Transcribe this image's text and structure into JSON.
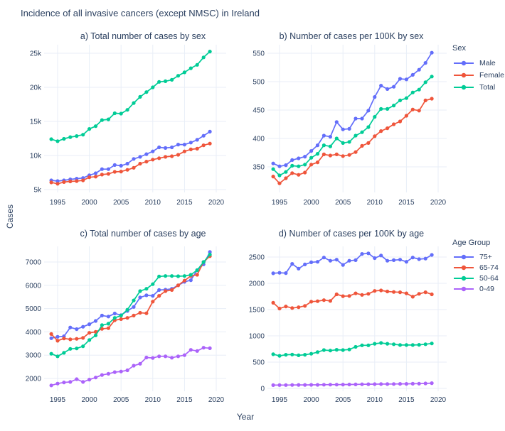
{
  "title": "Incidence of all invasive cancers (except NMSC) in Ireland",
  "ylabel": "Cases",
  "xlabel": "Year",
  "colors": {
    "male": "#636EFA",
    "female": "#EF553B",
    "total": "#00CC96",
    "age_75_plus": "#636EFA",
    "age_65_74": "#EF553B",
    "age_50_64": "#00CC96",
    "age_0_49": "#AB63FA",
    "text": "#2A3F5F",
    "grid": "#E8EEF7",
    "background": "#FFFFFF"
  },
  "legends": [
    {
      "title": "Sex",
      "items": [
        {
          "label": "Male",
          "color": "#636EFA"
        },
        {
          "label": "Female",
          "color": "#EF553B"
        },
        {
          "label": "Total",
          "color": "#00CC96"
        }
      ]
    },
    {
      "title": "Age Group",
      "items": [
        {
          "label": "75+",
          "color": "#636EFA"
        },
        {
          "label": "65-74",
          "color": "#EF553B"
        },
        {
          "label": "50-64",
          "color": "#00CC96"
        },
        {
          "label": "0-49",
          "color": "#AB63FA"
        }
      ]
    }
  ],
  "chart_data": [
    {
      "id": "a",
      "type": "line",
      "title": "a) Total number of cases by sex",
      "xlabel": "Year",
      "ylabel": "Cases",
      "grid": true,
      "x": [
        1994,
        1995,
        1996,
        1997,
        1998,
        1999,
        2000,
        2001,
        2002,
        2003,
        2004,
        2005,
        2006,
        2007,
        2008,
        2009,
        2010,
        2011,
        2012,
        2013,
        2014,
        2015,
        2016,
        2017,
        2018,
        2019
      ],
      "xticks": [
        1995,
        2000,
        2005,
        2010,
        2015,
        2020
      ],
      "yticks": [
        {
          "v": 5000,
          "label": "5k"
        },
        {
          "v": 10000,
          "label": "10k"
        },
        {
          "v": 15000,
          "label": "15k"
        },
        {
          "v": 20000,
          "label": "20k"
        },
        {
          "v": 25000,
          "label": "25k"
        }
      ],
      "ylim": [
        4800,
        26000
      ],
      "series": [
        {
          "name": "Male",
          "color": "#636EFA",
          "values": [
            6350,
            6250,
            6350,
            6500,
            6600,
            6700,
            7100,
            7400,
            8000,
            8000,
            8600,
            8500,
            8800,
            9500,
            9800,
            10200,
            10600,
            11200,
            11100,
            11200,
            11600,
            11600,
            11900,
            12300,
            12900,
            13500
          ]
        },
        {
          "name": "Female",
          "color": "#EF553B",
          "values": [
            6050,
            5850,
            6100,
            6200,
            6250,
            6350,
            6800,
            6900,
            7200,
            7300,
            7600,
            7650,
            7900,
            8200,
            8800,
            9100,
            9400,
            9600,
            9800,
            9900,
            10100,
            10600,
            10900,
            11000,
            11500,
            11750
          ]
        },
        {
          "name": "Total",
          "color": "#00CC96",
          "values": [
            12400,
            12100,
            12450,
            12700,
            12850,
            13050,
            13900,
            14300,
            15200,
            15300,
            16200,
            16150,
            16700,
            17700,
            18600,
            19300,
            20000,
            20800,
            20900,
            21100,
            21700,
            22200,
            22800,
            23300,
            24400,
            25250
          ]
        }
      ]
    },
    {
      "id": "b",
      "type": "line",
      "title": "b) Number of cases per 100K by sex",
      "legend_title": "Sex",
      "legend_position": "right",
      "grid": true,
      "x": [
        1994,
        1995,
        1996,
        1997,
        1998,
        1999,
        2000,
        2001,
        2002,
        2003,
        2004,
        2005,
        2006,
        2007,
        2008,
        2009,
        2010,
        2011,
        2012,
        2013,
        2014,
        2015,
        2016,
        2017,
        2018,
        2019
      ],
      "xticks": [
        1995,
        2000,
        2005,
        2010,
        2015,
        2020
      ],
      "yticks": [
        {
          "v": 350,
          "label": "350"
        },
        {
          "v": 400,
          "label": "400"
        },
        {
          "v": 450,
          "label": "450"
        },
        {
          "v": 500,
          "label": "500"
        },
        {
          "v": 550,
          "label": "550"
        }
      ],
      "ylim": [
        315,
        565
      ],
      "series": [
        {
          "name": "Male",
          "color": "#636EFA",
          "values": [
            356,
            351,
            353,
            362,
            365,
            368,
            378,
            388,
            405,
            403,
            429,
            416,
            417,
            435,
            435,
            449,
            473,
            493,
            487,
            491,
            505,
            504,
            512,
            521,
            533,
            551
          ]
        },
        {
          "name": "Female",
          "color": "#EF553B",
          "values": [
            333,
            321,
            330,
            339,
            336,
            340,
            354,
            358,
            372,
            370,
            372,
            369,
            371,
            376,
            387,
            392,
            404,
            413,
            418,
            425,
            430,
            440,
            451,
            449,
            467,
            470
          ]
        },
        {
          "name": "Total",
          "color": "#00CC96",
          "values": [
            346,
            335,
            341,
            352,
            351,
            354,
            366,
            373,
            388,
            386,
            400,
            392,
            394,
            405,
            411,
            420,
            438,
            452,
            452,
            458,
            467,
            471,
            481,
            486,
            499,
            509
          ]
        }
      ]
    },
    {
      "id": "c",
      "type": "line",
      "title": "c) Total number of cases by age",
      "xlabel": "Year",
      "ylabel": "Cases",
      "grid": true,
      "x": [
        1994,
        1995,
        1996,
        1997,
        1998,
        1999,
        2000,
        2001,
        2002,
        2003,
        2004,
        2005,
        2006,
        2007,
        2008,
        2009,
        2010,
        2011,
        2012,
        2013,
        2014,
        2015,
        2016,
        2017,
        2018,
        2019
      ],
      "xticks": [
        1995,
        2000,
        2005,
        2010,
        2015,
        2020
      ],
      "yticks": [
        {
          "v": 2000,
          "label": "2000"
        },
        {
          "v": 3000,
          "label": "3000"
        },
        {
          "v": 4000,
          "label": "4000"
        },
        {
          "v": 5000,
          "label": "5000"
        },
        {
          "v": 6000,
          "label": "6000"
        },
        {
          "v": 7000,
          "label": "7000"
        }
      ],
      "ylim": [
        1550,
        7650
      ],
      "series": [
        {
          "name": "75+",
          "color": "#636EFA",
          "values": [
            3730,
            3790,
            3810,
            4190,
            4120,
            4220,
            4330,
            4470,
            4700,
            4660,
            4790,
            4720,
            4900,
            5070,
            5480,
            5570,
            5550,
            5800,
            5810,
            5850,
            6000,
            6150,
            6220,
            6650,
            6900,
            7430
          ]
        },
        {
          "name": "65-74",
          "color": "#EF553B",
          "values": [
            3910,
            3620,
            3720,
            3680,
            3700,
            3740,
            3960,
            4000,
            4130,
            4160,
            4500,
            4550,
            4600,
            4700,
            4820,
            4800,
            5300,
            5550,
            5750,
            5800,
            6000,
            6200,
            6400,
            6450,
            7000,
            7250
          ]
        },
        {
          "name": "50-64",
          "color": "#00CC96",
          "values": [
            3060,
            2950,
            3100,
            3270,
            3290,
            3380,
            3650,
            3850,
            4290,
            4350,
            4600,
            4700,
            4950,
            5350,
            5750,
            5850,
            6050,
            6380,
            6400,
            6400,
            6390,
            6400,
            6450,
            6650,
            7000,
            7320
          ]
        },
        {
          "name": "0-49",
          "color": "#AB63FA",
          "values": [
            1700,
            1780,
            1830,
            1850,
            1970,
            1850,
            1950,
            2040,
            2150,
            2200,
            2270,
            2300,
            2350,
            2550,
            2630,
            2900,
            2880,
            2950,
            2950,
            2890,
            2950,
            3000,
            3230,
            3180,
            3320,
            3300
          ]
        }
      ]
    },
    {
      "id": "d",
      "type": "line",
      "title": "d) Number of cases per 100K by age",
      "legend_title": "Age Group",
      "legend_position": "right",
      "grid": true,
      "x": [
        1994,
        1995,
        1996,
        1997,
        1998,
        1999,
        2000,
        2001,
        2002,
        2003,
        2004,
        2005,
        2006,
        2007,
        2008,
        2009,
        2010,
        2011,
        2012,
        2013,
        2014,
        2015,
        2016,
        2017,
        2018,
        2019
      ],
      "xticks": [
        1995,
        2000,
        2005,
        2010,
        2015,
        2020
      ],
      "yticks": [
        {
          "v": 0,
          "label": "0"
        },
        {
          "v": 500,
          "label": "500"
        },
        {
          "v": 1000,
          "label": "1000"
        },
        {
          "v": 1500,
          "label": "1500"
        },
        {
          "v": 2000,
          "label": "2000"
        },
        {
          "v": 2500,
          "label": "2500"
        }
      ],
      "ylim": [
        -100,
        2700
      ],
      "series": [
        {
          "name": "75+",
          "color": "#636EFA",
          "values": [
            2190,
            2200,
            2195,
            2370,
            2280,
            2360,
            2400,
            2410,
            2490,
            2430,
            2450,
            2350,
            2430,
            2440,
            2560,
            2570,
            2480,
            2530,
            2430,
            2440,
            2450,
            2410,
            2490,
            2460,
            2470,
            2540
          ]
        },
        {
          "name": "65-74",
          "color": "#EF553B",
          "values": [
            1630,
            1520,
            1560,
            1530,
            1545,
            1570,
            1650,
            1660,
            1680,
            1665,
            1790,
            1755,
            1760,
            1810,
            1780,
            1800,
            1855,
            1865,
            1845,
            1835,
            1830,
            1810,
            1745,
            1800,
            1830,
            1790
          ]
        },
        {
          "name": "50-64",
          "color": "#00CC96",
          "values": [
            650,
            620,
            640,
            645,
            630,
            640,
            660,
            690,
            730,
            720,
            735,
            730,
            740,
            790,
            820,
            820,
            850,
            865,
            850,
            840,
            825,
            825,
            825,
            830,
            840,
            855
          ]
        },
        {
          "name": "0-49",
          "color": "#AB63FA",
          "values": [
            62,
            63,
            64,
            65,
            66,
            66,
            67,
            68,
            70,
            71,
            72,
            73,
            74,
            76,
            78,
            80,
            81,
            83,
            83,
            84,
            86,
            87,
            89,
            91,
            94,
            100
          ]
        }
      ]
    }
  ]
}
